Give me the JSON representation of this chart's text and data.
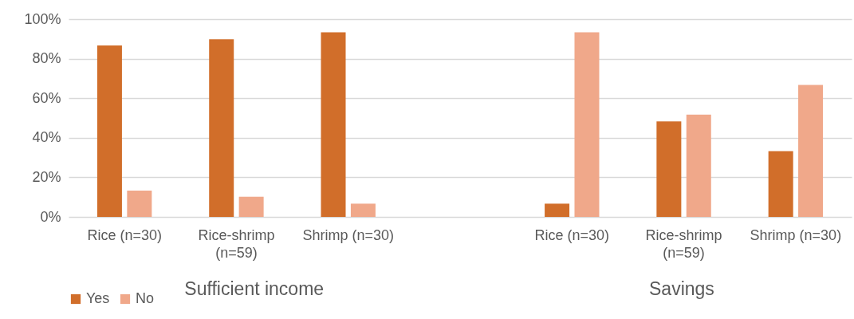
{
  "chart_data": {
    "type": "bar",
    "categories": [
      "Rice (n=30)",
      "Rice-shrimp (n=59)",
      "Shrimp (n=30)",
      null,
      "Rice (n=30)",
      "Rice-shrimp (n=59)",
      "Shrimp (n=30)"
    ],
    "series": [
      {
        "name": "Yes",
        "color": "#d16e2a",
        "values": [
          86.7,
          89.8,
          93.3,
          null,
          6.7,
          48.3,
          33.3
        ]
      },
      {
        "name": "No",
        "color": "#f0a88a",
        "values": [
          13.3,
          10.2,
          6.7,
          null,
          93.3,
          51.7,
          66.7
        ]
      }
    ],
    "ylim": [
      0,
      100
    ],
    "yticks": [
      {
        "value": 0,
        "label": "0%"
      },
      {
        "value": 20,
        "label": "20%"
      },
      {
        "value": 40,
        "label": "40%"
      },
      {
        "value": 60,
        "label": "60%"
      },
      {
        "value": 80,
        "label": "80%"
      },
      {
        "value": 100,
        "label": "100%"
      }
    ],
    "annotations": [
      "Sufficient income",
      "Savings"
    ],
    "grid": "y",
    "legend": "bottom"
  }
}
